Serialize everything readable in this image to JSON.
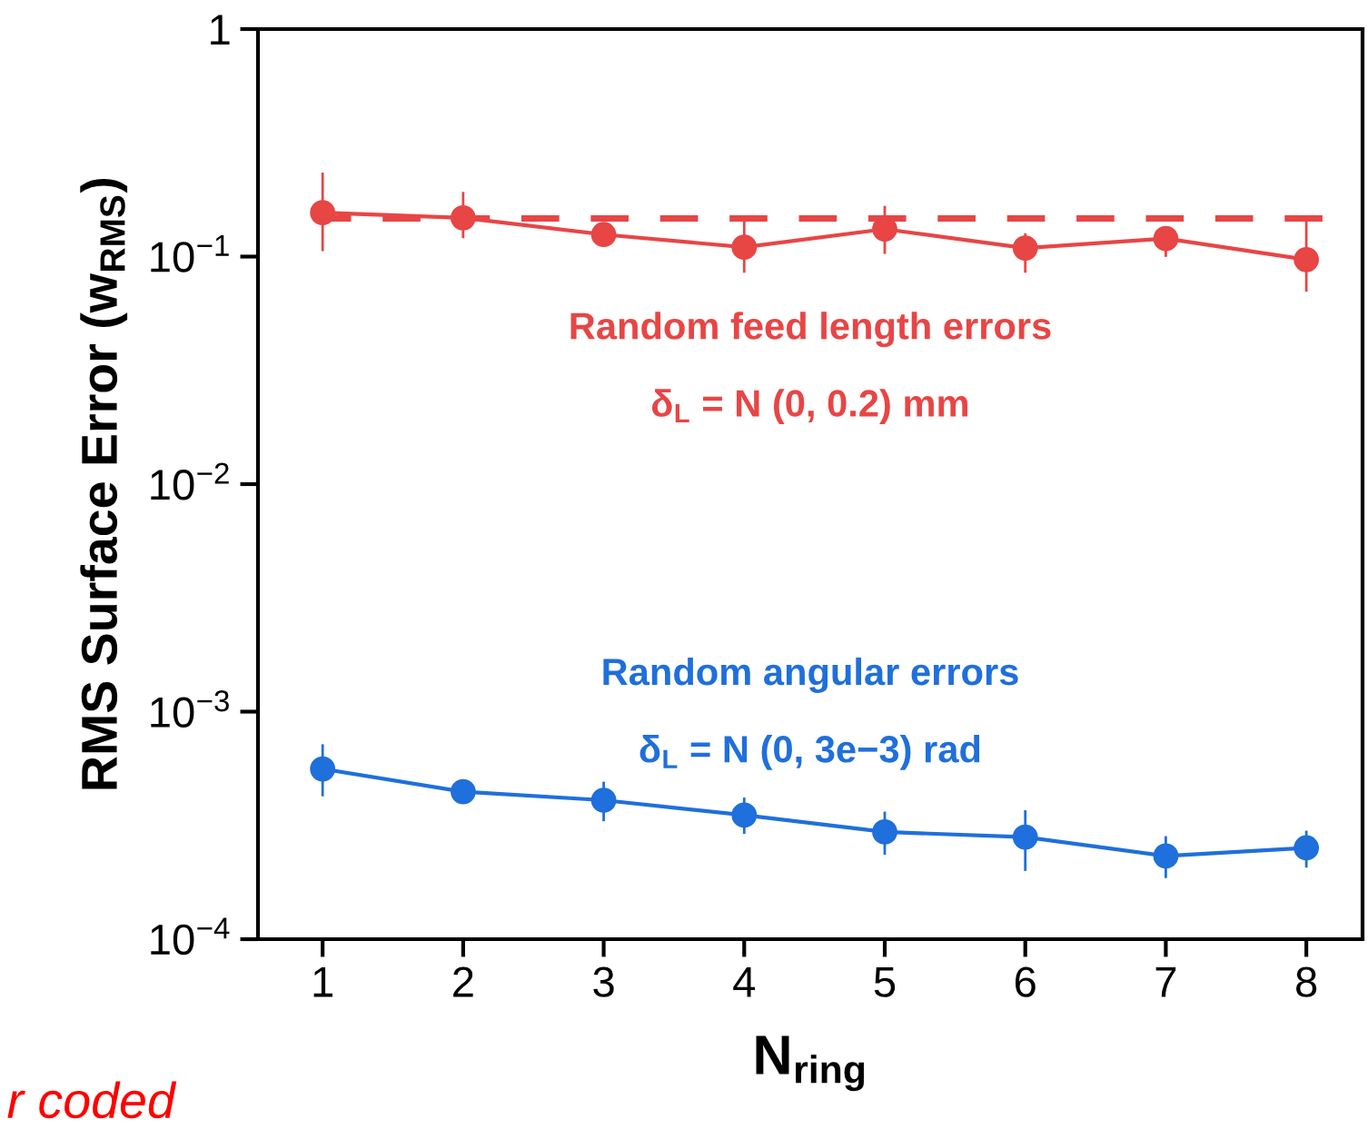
{
  "chart_data": {
    "type": "line",
    "xlabel": "N$_{ring}$",
    "ylabel": "RMS Surface Error (w$_{RMS}$)",
    "x": [
      1,
      2,
      3,
      4,
      5,
      6,
      7,
      8
    ],
    "series": [
      {
        "name": "Random feed length errors",
        "color": "#e84545",
        "values": [
          0.156,
          0.148,
          0.125,
          0.11,
          0.132,
          0.109,
          0.12,
          0.097
        ],
        "errors": [
          [
            0.107,
            0.231
          ],
          [
            0.122,
            0.19
          ],
          null,
          [
            0.086,
            0.147
          ],
          [
            0.104,
            0.165
          ],
          [
            0.086,
            0.125
          ],
          [
            0.101,
            0.13
          ],
          [
            0.071,
            0.15
          ]
        ]
      },
      {
        "name": "Random angular errors",
        "color": "#1f6fdc",
        "values": [
          0.00056,
          0.000445,
          0.000408,
          0.000351,
          0.000296,
          0.000281,
          0.000232,
          0.000252
        ],
        "errors": [
          [
            0.00043,
            0.00071
          ],
          null,
          [
            0.000334,
            0.000486
          ],
          [
            0.000294,
            0.000414
          ],
          [
            0.000238,
            0.000359
          ],
          [
            0.000202,
            0.000364
          ],
          [
            0.000188,
            0.00028
          ],
          [
            0.000209,
            0.000296
          ]
        ]
      }
    ],
    "annotations": [
      "δ$_{L}$ = N (0, 0.2) mm",
      "δ$_{L}$ = N (0, 3e−3) rad",
      "r coded"
    ],
    "ref_lines": [
      {
        "axis": "y",
        "value": 0.147,
        "color": "#e84545",
        "line_style": "dashed"
      }
    ],
    "log": "y",
    "xlim": [
      0.54,
      8.4
    ],
    "ylim": [
      0.0001,
      1
    ],
    "xticks": [
      1,
      2,
      3,
      4,
      5,
      6,
      7,
      8
    ],
    "yticks": [
      {
        "value": 0.0001,
        "label": "10$^{−4}$"
      },
      {
        "value": 0.001,
        "label": "10$^{−3}$"
      },
      {
        "value": 0.01,
        "label": "10$^{−2}$"
      },
      {
        "value": 0.1,
        "label": "10$^{−1}$"
      },
      1
    ],
    "marker": "circle",
    "line_style": "solid",
    "grid": false
  }
}
